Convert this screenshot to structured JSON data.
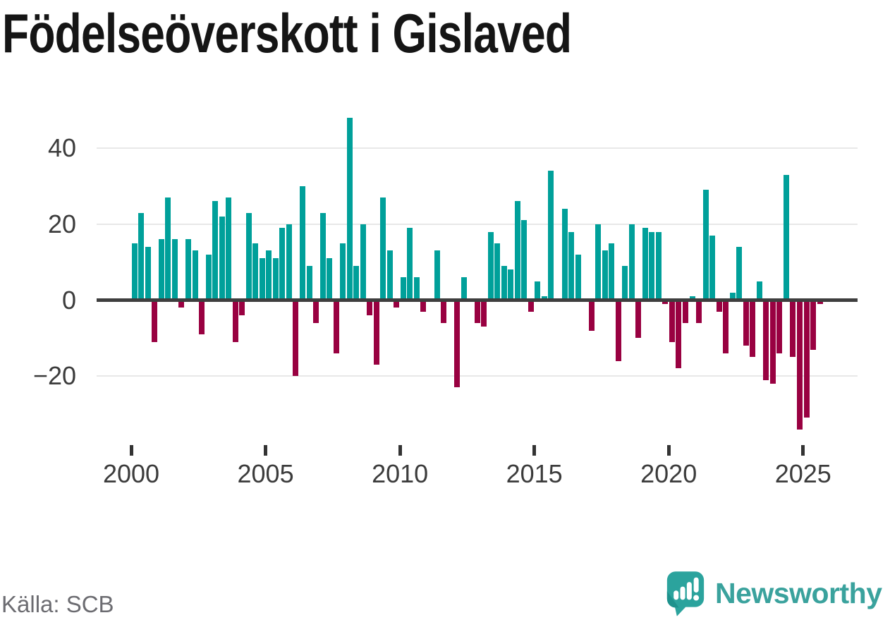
{
  "page": {
    "title": "Födelseöverskott i Gislaved",
    "source": "Källa: SCB",
    "branding": "Newsworthy"
  },
  "chart_data": {
    "type": "bar",
    "title": "Födelseöverskott i Gislaved",
    "frequency": "quarterly",
    "start_year": 2000,
    "start_quarter": 1,
    "values": [
      15,
      23,
      14,
      -11,
      16,
      27,
      16,
      -2,
      16,
      13,
      -9,
      12,
      26,
      22,
      27,
      -11,
      -4,
      23,
      15,
      11,
      13,
      11,
      19,
      20,
      -20,
      30,
      9,
      -6,
      23,
      11,
      -14,
      15,
      48,
      9,
      20,
      -4,
      -17,
      27,
      13,
      -2,
      6,
      19,
      6,
      -3,
      0,
      13,
      -6,
      0,
      -23,
      6,
      0,
      -6,
      -7,
      18,
      15,
      9,
      8,
      26,
      21,
      -3,
      5,
      1,
      34,
      0,
      24,
      18,
      12,
      0,
      -8,
      20,
      13,
      15,
      -16,
      9,
      20,
      -10,
      19,
      18,
      18,
      -1,
      -11,
      -18,
      -6,
      1,
      -6,
      29,
      17,
      -3,
      -14,
      2,
      14,
      -12,
      -15,
      5,
      -21,
      -22,
      -14,
      33,
      -15,
      -34,
      -31,
      -13,
      -1
    ],
    "x_tick_years": [
      2000,
      2005,
      2010,
      2015,
      2020,
      2025
    ],
    "x_tick_labels": [
      "2000",
      "2005",
      "2010",
      "2015",
      "2020",
      "2025"
    ],
    "y_ticks": [
      {
        "value": 40,
        "label": "40"
      },
      {
        "value": 20,
        "label": "20"
      },
      {
        "value": 0,
        "label": "0"
      },
      {
        "value": -20,
        "label": "−20"
      }
    ],
    "ylim": [
      -36,
      50
    ],
    "grid": true,
    "legend": false,
    "colors": {
      "positive": "#00A09A",
      "negative": "#990141",
      "axis": "#3E3E3E",
      "gridline": "#E8E8E8",
      "tick_text": "#3C3C3C"
    }
  }
}
